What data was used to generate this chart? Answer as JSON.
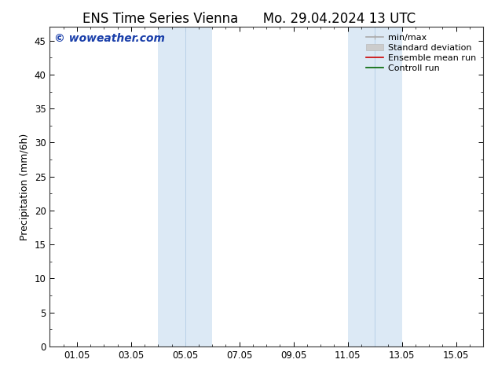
{
  "title_left": "ENS Time Series Vienna",
  "title_right": "Mo. 29.04.2024 13 UTC",
  "ylabel": "Precipitation (mm/6h)",
  "ylim": [
    0,
    47
  ],
  "yticks": [
    0,
    5,
    10,
    15,
    20,
    25,
    30,
    35,
    40,
    45
  ],
  "xtick_labels": [
    "01.05",
    "03.05",
    "05.05",
    "07.05",
    "09.05",
    "11.05",
    "13.05",
    "15.05"
  ],
  "xtick_positions": [
    1,
    3,
    5,
    7,
    9,
    11,
    13,
    15
  ],
  "xlim": [
    0,
    16
  ],
  "shaded_regions": [
    {
      "xmin": 4.0,
      "xmax": 6.0,
      "color": "#dce9f5"
    },
    {
      "xmin": 11.0,
      "xmax": 13.0,
      "color": "#dce9f5"
    }
  ],
  "inner_lines": [
    {
      "x": 5.0,
      "color": "#b8d0e8"
    },
    {
      "x": 12.0,
      "color": "#b8d0e8"
    }
  ],
  "watermark_text": "© woweather.com",
  "watermark_color": "#1a3faa",
  "watermark_fontsize": 10,
  "legend_items": [
    {
      "label": "min/max",
      "color": "#aaaaaa",
      "lw": 1.2
    },
    {
      "label": "Standard deviation",
      "color": "#cccccc",
      "lw": 5
    },
    {
      "label": "Ensemble mean run",
      "color": "#cc0000",
      "lw": 1.2
    },
    {
      "label": "Controll run",
      "color": "#006600",
      "lw": 1.2
    }
  ],
  "background_color": "#ffffff",
  "title_fontsize": 12,
  "ylabel_fontsize": 9,
  "tick_fontsize": 8.5,
  "legend_fontsize": 8
}
